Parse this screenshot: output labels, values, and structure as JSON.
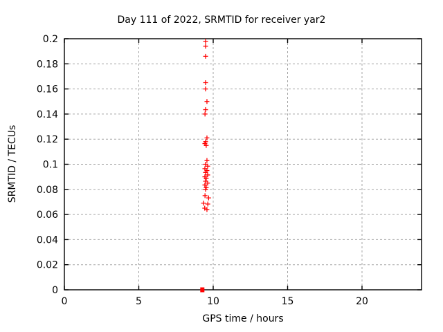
{
  "window": {
    "background": "#ffffff"
  },
  "chart_data": {
    "type": "scatter",
    "title": "Day 111 of 2022, SRMTID for receiver yar2",
    "xlabel": "GPS time / hours",
    "ylabel": "SRMTID / TECUs",
    "xlim": [
      0,
      24
    ],
    "ylim": [
      0,
      0.2
    ],
    "grid": true,
    "legend": "none",
    "xticks": {
      "values": [
        0,
        5,
        10,
        15,
        20
      ],
      "labels": [
        "0",
        "5",
        "10",
        "15",
        "20"
      ]
    },
    "yticks": {
      "values": [
        0,
        0.02,
        0.04,
        0.06,
        0.08,
        0.1,
        0.12,
        0.14,
        0.16,
        0.18,
        0.2
      ],
      "labels": [
        "0",
        "0.02",
        "0.04",
        "0.06",
        "0.08",
        "0.1",
        "0.12",
        "0.14",
        "0.16",
        "0.18",
        "0.2"
      ]
    },
    "colors": {
      "marker": "#ff0000",
      "grid": "#a6a6a6",
      "axis": "#000000",
      "text": "#000000"
    },
    "series": [
      {
        "name": "srmtid-values",
        "marker": "plus",
        "color": "#ff0000",
        "points": [
          [
            9.49,
            0.198
          ],
          [
            9.49,
            0.194
          ],
          [
            9.49,
            0.186
          ],
          [
            9.49,
            0.165
          ],
          [
            9.49,
            0.16
          ],
          [
            9.58,
            0.15
          ],
          [
            9.49,
            0.1435
          ],
          [
            9.45,
            0.14
          ],
          [
            9.58,
            0.121
          ],
          [
            9.49,
            0.118
          ],
          [
            9.44,
            0.1165
          ],
          [
            9.53,
            0.115
          ],
          [
            9.58,
            0.103
          ],
          [
            9.49,
            0.1
          ],
          [
            9.63,
            0.0985
          ],
          [
            9.44,
            0.0965
          ],
          [
            9.58,
            0.095
          ],
          [
            9.49,
            0.0935
          ],
          [
            9.63,
            0.0915
          ],
          [
            9.44,
            0.09
          ],
          [
            9.53,
            0.0885
          ],
          [
            9.49,
            0.0865
          ],
          [
            9.63,
            0.085
          ],
          [
            9.44,
            0.0835
          ],
          [
            9.53,
            0.0815
          ],
          [
            9.49,
            0.08
          ],
          [
            9.45,
            0.075
          ],
          [
            9.69,
            0.0732
          ],
          [
            9.35,
            0.069
          ],
          [
            9.64,
            0.0683
          ],
          [
            9.43,
            0.065
          ],
          [
            9.58,
            0.064
          ]
        ]
      },
      {
        "name": "zero-baseline-marker",
        "marker": "filled-square",
        "color": "#ff0000",
        "points": [
          [
            9.27,
            0.0
          ]
        ]
      }
    ]
  }
}
